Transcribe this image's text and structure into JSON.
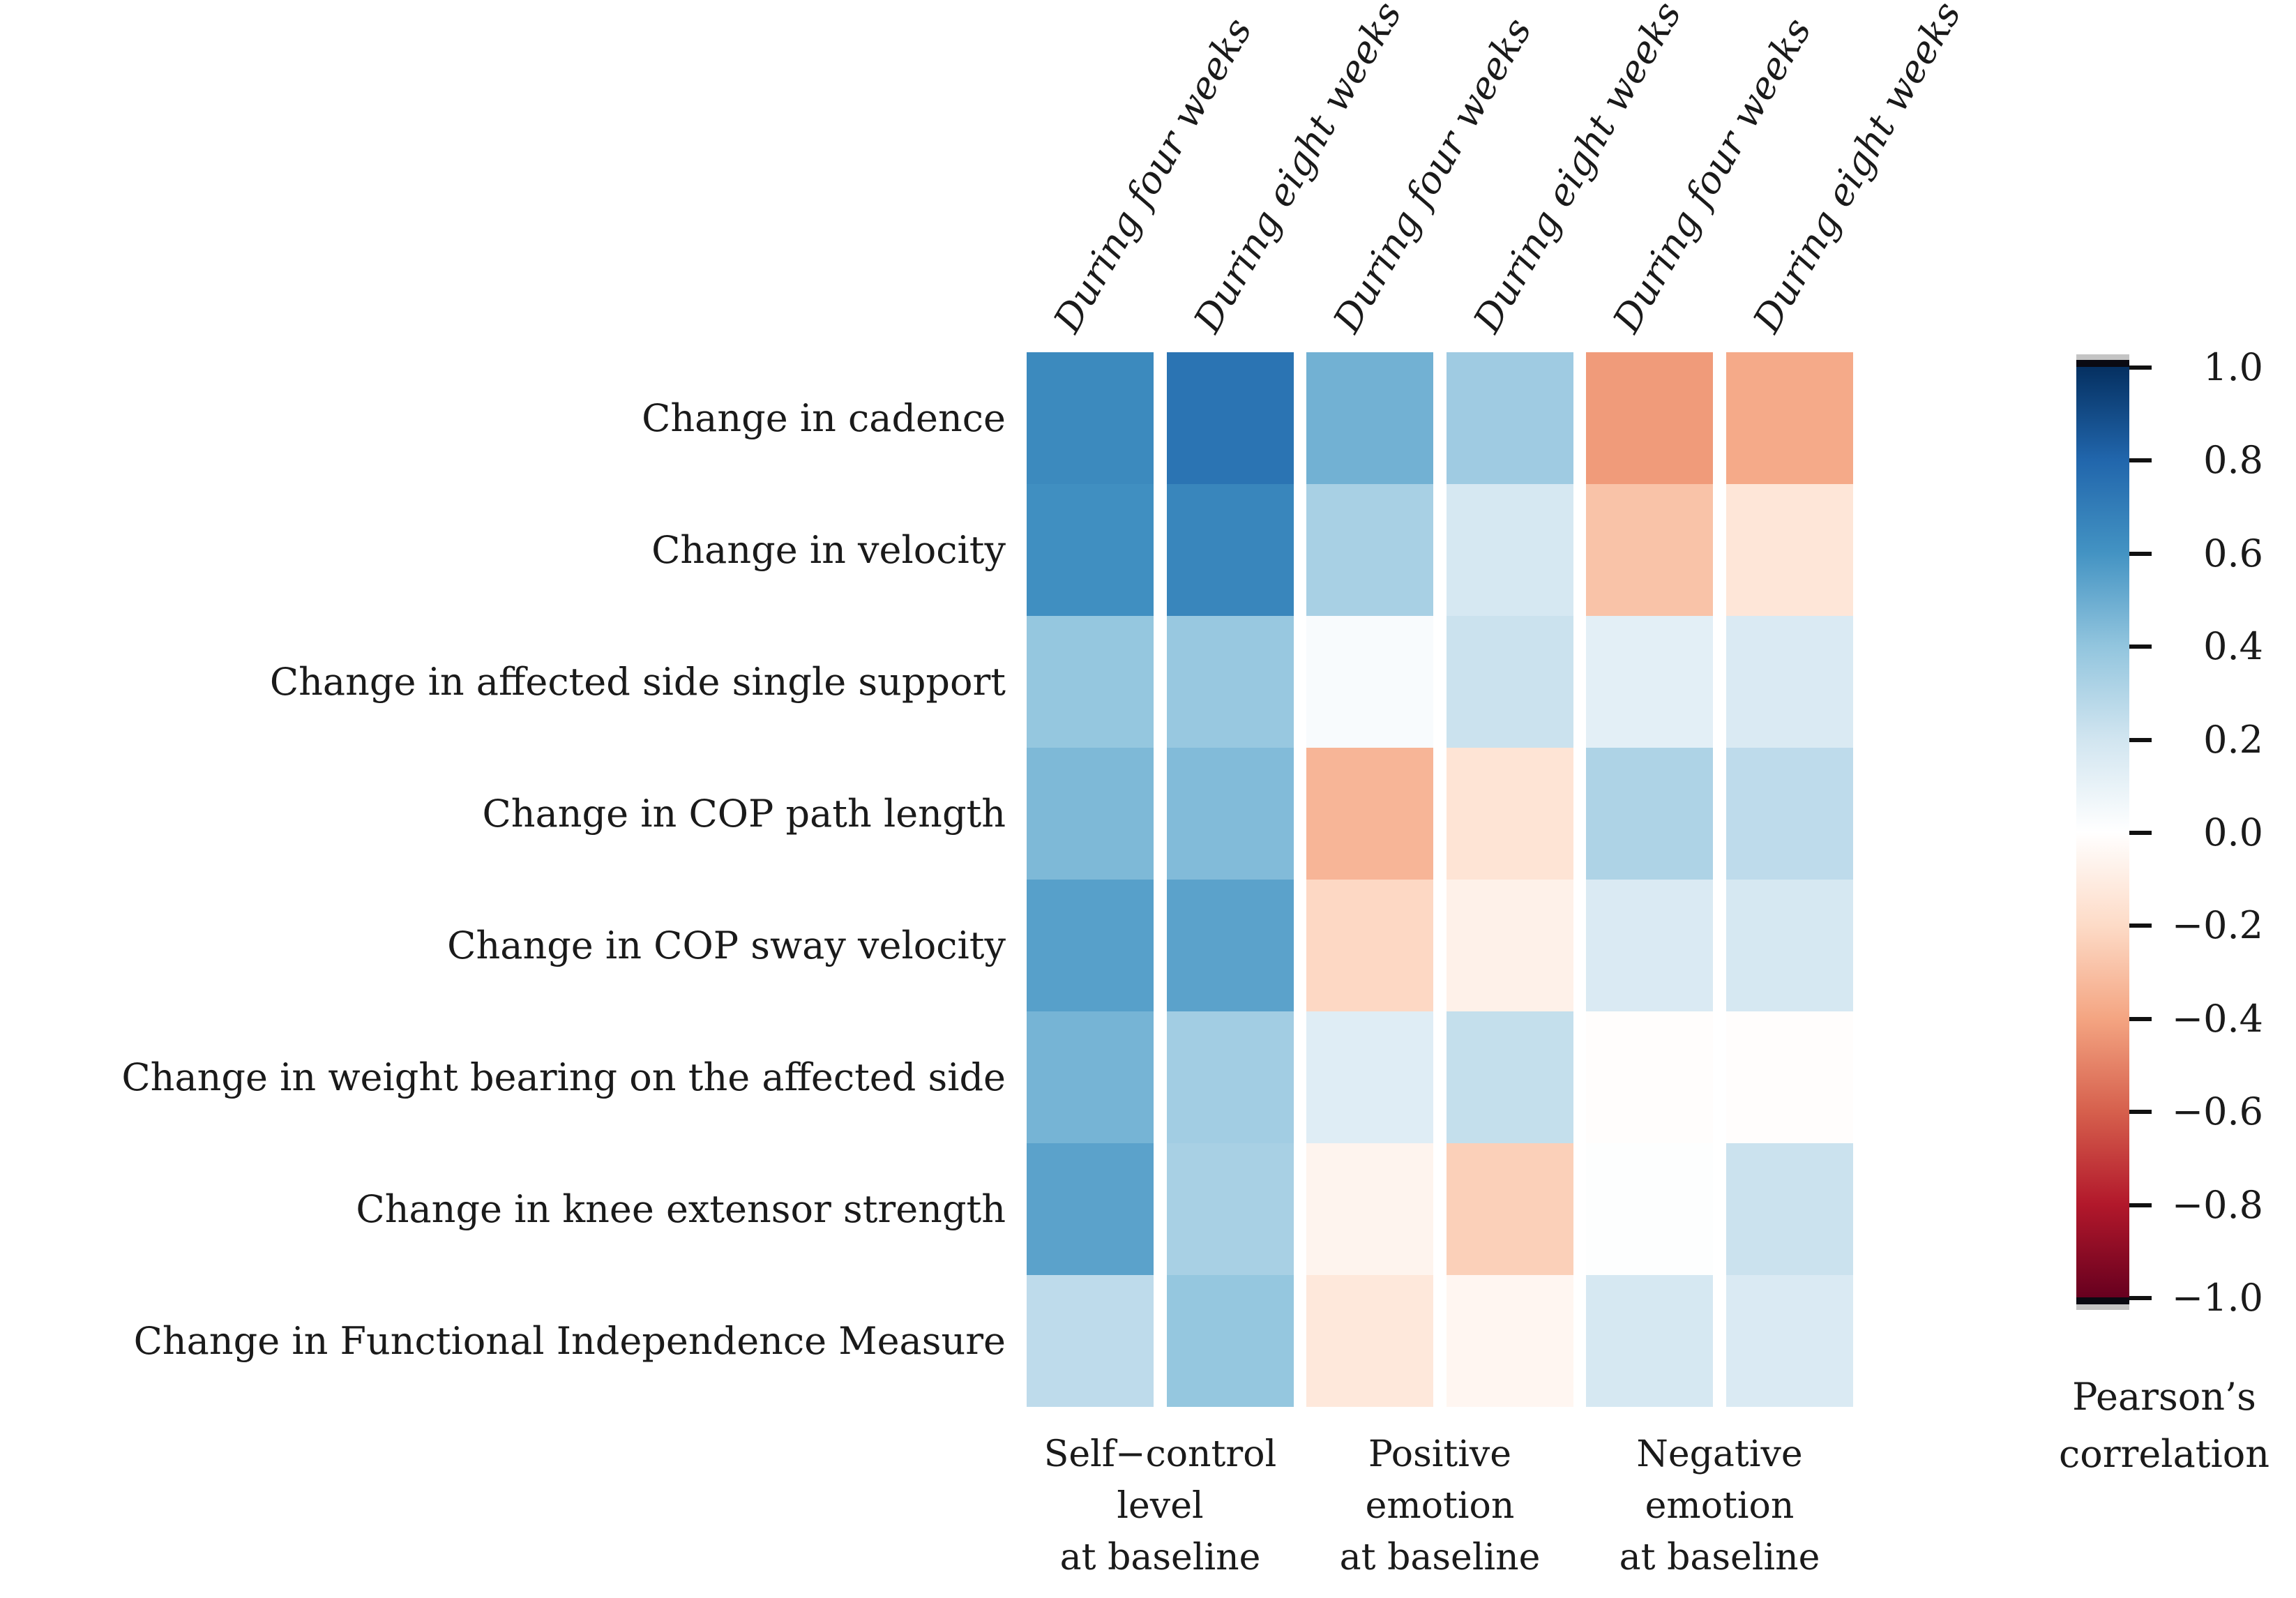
{
  "chart_data": {
    "type": "heatmap",
    "title": "",
    "xlabel": "",
    "ylabel": "",
    "grid": false,
    "legend_position": "right",
    "rows": [
      "Change in cadence",
      "Change in velocity",
      "Change in affected side single support",
      "Change in COP path length",
      "Change in COP sway velocity",
      "Change in weight bearing on the affected side",
      "Change in knee extensor strength",
      "Change in Functional Independence Measure"
    ],
    "columns": [
      "During four weeks",
      "During eight weeks",
      "During four weeks",
      "During eight weeks",
      "During four weeks",
      "During eight weeks"
    ],
    "column_groups": [
      {
        "lines": [
          "Self−control",
          "level",
          "at baseline"
        ],
        "columns": [
          0,
          1
        ]
      },
      {
        "lines": [
          "Positive",
          "emotion",
          "at baseline"
        ],
        "columns": [
          2,
          3
        ]
      },
      {
        "lines": [
          "Negative",
          "emotion",
          "at baseline"
        ],
        "columns": [
          4,
          5
        ]
      }
    ],
    "values": [
      [
        0.64,
        0.74,
        0.48,
        0.36,
        -0.43,
        -0.38
      ],
      [
        0.62,
        0.66,
        0.33,
        0.18,
        -0.29,
        -0.14
      ],
      [
        0.39,
        0.38,
        0.03,
        0.22,
        0.12,
        0.16
      ],
      [
        0.45,
        0.44,
        -0.34,
        -0.15,
        0.31,
        0.26
      ],
      [
        0.55,
        0.54,
        -0.21,
        -0.08,
        0.16,
        0.18
      ],
      [
        0.47,
        0.35,
        0.14,
        0.24,
        -0.01,
        -0.01
      ],
      [
        0.54,
        0.33,
        -0.06,
        -0.24,
        0.01,
        0.22
      ],
      [
        0.26,
        0.39,
        -0.13,
        -0.05,
        0.18,
        0.16
      ]
    ],
    "colorbar": {
      "title_lines": [
        "Pearson’s",
        "correlation"
      ],
      "tick_labels": [
        "1.0",
        "0.8",
        "0.6",
        "0.4",
        "0.2",
        "0.0",
        "−0.2",
        "−0.4",
        "−0.6",
        "−0.8",
        "−1.0"
      ],
      "tick_values": [
        1.0,
        0.8,
        0.6,
        0.4,
        0.2,
        0.0,
        -0.2,
        -0.4,
        -0.6,
        -0.8,
        -1.0
      ],
      "range": [
        -1.0,
        1.0
      ],
      "palette_name": "RdBu",
      "color_stops": [
        {
          "value": -1.0,
          "color": "#67001f"
        },
        {
          "value": -0.8,
          "color": "#b2182b"
        },
        {
          "value": -0.6,
          "color": "#d6604d"
        },
        {
          "value": -0.4,
          "color": "#f4a582"
        },
        {
          "value": -0.2,
          "color": "#fddbc7"
        },
        {
          "value": 0.0,
          "color": "#ffffff"
        },
        {
          "value": 0.2,
          "color": "#d1e5f0"
        },
        {
          "value": 0.4,
          "color": "#92c5de"
        },
        {
          "value": 0.6,
          "color": "#4393c3"
        },
        {
          "value": 0.8,
          "color": "#2166ac"
        },
        {
          "value": 1.0,
          "color": "#053061"
        }
      ]
    }
  }
}
